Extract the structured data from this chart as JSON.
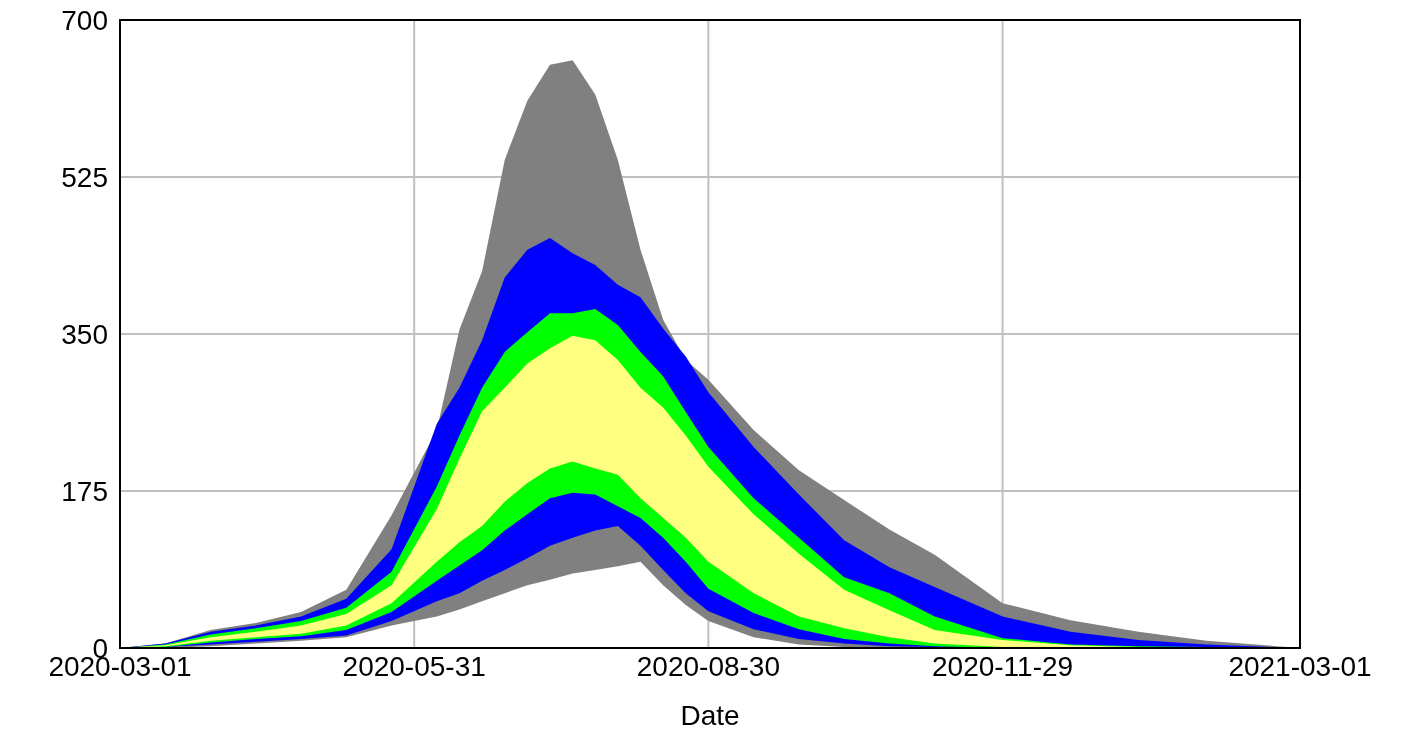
{
  "chart_data": {
    "type": "area",
    "xlabel": "Date",
    "x": [
      "2020-03-01",
      "2020-03-15",
      "2020-03-29",
      "2020-04-12",
      "2020-04-26",
      "2020-05-10",
      "2020-05-24",
      "2020-06-07",
      "2020-06-14",
      "2020-06-21",
      "2020-06-28",
      "2020-07-05",
      "2020-07-12",
      "2020-07-19",
      "2020-07-26",
      "2020-08-02",
      "2020-08-09",
      "2020-08-16",
      "2020-08-23",
      "2020-08-30",
      "2020-09-13",
      "2020-09-27",
      "2020-10-11",
      "2020-10-25",
      "2020-11-08",
      "2020-11-29",
      "2020-12-20",
      "2021-01-10",
      "2021-01-31",
      "2021-03-01"
    ],
    "series": [
      {
        "color": "#808080",
        "values": [
          null,
          null,
          null,
          null,
          null,
          null,
          null,
          null,
          null,
          null,
          null,
          null,
          null,
          null,
          null,
          null,
          null,
          null,
          null,
          null,
          null,
          null,
          null,
          null,
          null,
          null,
          null,
          null,
          null,
          null
        ],
        "upper": [
          0,
          5,
          20,
          28,
          40,
          65,
          148,
          243,
          355,
          420,
          544,
          610,
          650,
          655,
          617,
          544,
          444,
          366,
          321,
          299,
          243,
          198,
          165,
          132,
          104,
          50,
          31,
          18,
          8,
          0
        ],
        "lower": [
          0,
          0,
          2,
          5,
          8,
          12,
          25,
          35,
          43,
          52,
          61,
          70,
          76,
          83,
          87,
          91,
          96,
          70,
          48,
          30,
          12,
          4,
          1,
          0,
          0,
          0,
          0,
          0,
          0,
          0
        ]
      },
      {
        "color": "#0000ff",
        "values": [
          null,
          null,
          null,
          null,
          null,
          null,
          null,
          null,
          null,
          null,
          null,
          null,
          null,
          null,
          null,
          null,
          null,
          null,
          null,
          null,
          null,
          null,
          null,
          null,
          null,
          null,
          null,
          null,
          null,
          null
        ],
        "upper": [
          0,
          5,
          18,
          25,
          35,
          55,
          110,
          250,
          290,
          343,
          413,
          444,
          457,
          440,
          427,
          405,
          391,
          356,
          325,
          285,
          224,
          171,
          120,
          90,
          68,
          35,
          18,
          9,
          4,
          0
        ],
        "lower": [
          0,
          1,
          4,
          7,
          10,
          14,
          30,
          52,
          61,
          75,
          87,
          100,
          114,
          123,
          131,
          136,
          114,
          87,
          61,
          41,
          21,
          10,
          5,
          2,
          1,
          0,
          0,
          0,
          0,
          0
        ]
      },
      {
        "color": "#00ff00",
        "values": [
          null,
          null,
          null,
          null,
          null,
          null,
          null,
          null,
          null,
          null,
          null,
          null,
          null,
          null,
          null,
          null,
          null,
          null,
          null,
          null,
          null,
          null,
          null,
          null,
          null,
          null,
          null,
          null,
          null,
          null
        ],
        "upper": [
          0,
          4,
          15,
          22,
          30,
          45,
          85,
          180,
          237,
          290,
          330,
          352,
          373,
          373,
          378,
          360,
          330,
          303,
          263,
          224,
          167,
          123,
          79,
          61,
          35,
          11,
          4,
          2,
          1,
          0
        ],
        "lower": [
          0,
          1,
          6,
          10,
          13,
          20,
          40,
          75,
          92,
          109,
          131,
          149,
          167,
          173,
          171,
          158,
          145,
          123,
          96,
          66,
          39,
          21,
          10,
          5,
          2,
          0,
          0,
          0,
          0,
          0
        ]
      },
      {
        "color": "#ffff80",
        "values": [
          null,
          null,
          null,
          null,
          null,
          null,
          null,
          null,
          null,
          null,
          null,
          null,
          null,
          null,
          null,
          null,
          null,
          null,
          null,
          null,
          null,
          null,
          null,
          null,
          null,
          null,
          null,
          null,
          null,
          null
        ],
        "upper": [
          0,
          3,
          12,
          18,
          25,
          38,
          70,
          155,
          211,
          264,
          290,
          317,
          334,
          348,
          343,
          321,
          290,
          268,
          237,
          202,
          149,
          105,
          65,
          42,
          20,
          9,
          3,
          1,
          0,
          0
        ],
        "lower": [
          0,
          2,
          8,
          12,
          16,
          25,
          50,
          96,
          118,
          136,
          163,
          184,
          200,
          208,
          200,
          193,
          167,
          145,
          123,
          96,
          61,
          35,
          22,
          12,
          5,
          1,
          0,
          0,
          0,
          0
        ]
      }
    ],
    "xlim": [
      "2020-03-01",
      "2021-03-01"
    ],
    "xticks": [
      {
        "value": "2020-03-01",
        "label": "2020-03-01"
      },
      {
        "value": "2020-05-31",
        "label": "2020-05-31"
      },
      {
        "value": "2020-08-30",
        "label": "2020-08-30"
      },
      {
        "value": "2020-11-29",
        "label": "2020-11-29"
      },
      {
        "value": "2021-03-01",
        "label": "2021-03-01"
      }
    ],
    "ylim": [
      0,
      700
    ],
    "yticks": [
      0,
      175,
      350,
      525,
      700
    ],
    "grid": true
  }
}
